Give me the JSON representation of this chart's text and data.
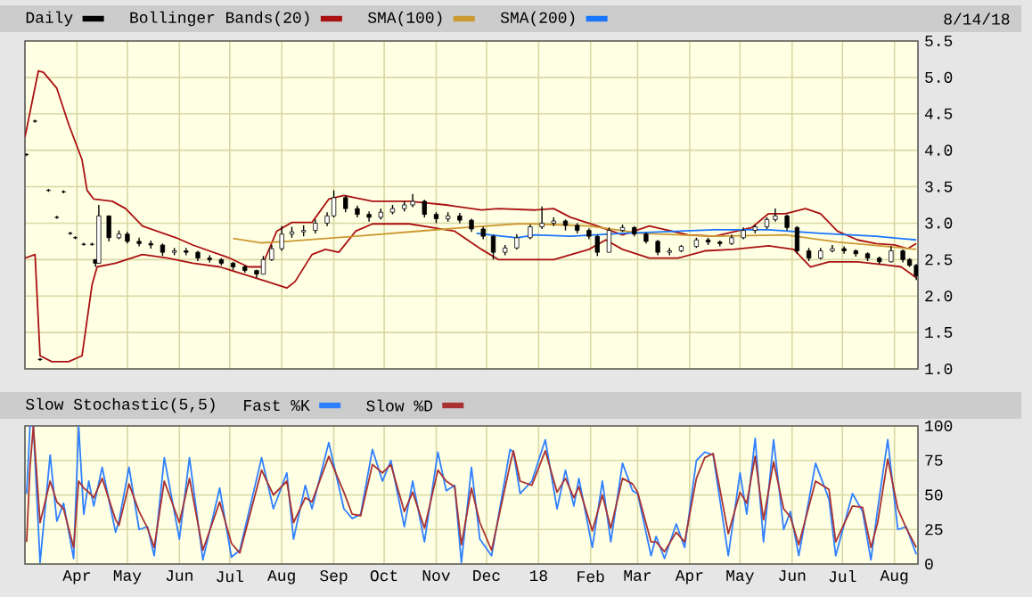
{
  "chart_data": [
    {
      "type": "candlestick",
      "legend": "top",
      "grid": true,
      "tick_labels": "y",
      "annotations": [
        "8/14/18"
      ],
      "xlim": [
        "2017-03-01",
        "2018-08-15"
      ],
      "ylim": [
        1.0,
        5.5
      ],
      "xticks": [
        {
          "value": "2017-04-01",
          "label": null
        },
        {
          "value": "2017-05-01",
          "label": null
        },
        {
          "value": "2017-06-01",
          "label": null
        },
        {
          "value": "2017-07-01",
          "label": null
        },
        {
          "value": "2017-08-01",
          "label": null
        },
        {
          "value": "2017-09-01",
          "label": null
        },
        {
          "value": "2017-10-01",
          "label": null
        },
        {
          "value": "2017-11-01",
          "label": null
        },
        {
          "value": "2017-12-01",
          "label": null
        },
        {
          "value": "2018-01-01",
          "label": null
        },
        {
          "value": "2018-02-01",
          "label": null
        },
        {
          "value": "2018-03-01",
          "label": null
        },
        {
          "value": "2018-04-01",
          "label": null
        },
        {
          "value": "2018-05-01",
          "label": null
        },
        {
          "value": "2018-06-01",
          "label": null
        },
        {
          "value": "2018-07-01",
          "label": null
        },
        {
          "value": "2018-08-01",
          "label": null
        }
      ],
      "yticks": [
        {
          "value": 1.0,
          "label": "1.0"
        },
        1.5,
        {
          "value": 2.0,
          "label": "2.0"
        },
        2.5,
        {
          "value": 3.0,
          "label": "3.0"
        },
        3.5,
        {
          "value": 4.0,
          "label": "4.0"
        },
        4.5,
        {
          "value": 5.0,
          "label": "5.0"
        },
        5.5
      ],
      "series": [
        {
          "type": "candlestick",
          "name": "Daily",
          "color": "#000000",
          "x": [
            "2017-03-02",
            "2017-03-07",
            "2017-03-10",
            "2017-03-15",
            "2017-03-20",
            "2017-03-24",
            "2017-03-28",
            "2017-03-31",
            "2017-04-05",
            "2017-04-10",
            "2017-04-12",
            "2017-04-14",
            "2017-04-20",
            "2017-04-26",
            "2017-05-01",
            "2017-05-08",
            "2017-05-15",
            "2017-05-22",
            "2017-05-29",
            "2017-06-05",
            "2017-06-12",
            "2017-06-19",
            "2017-06-26",
            "2017-07-03",
            "2017-07-10",
            "2017-07-17",
            "2017-07-21",
            "2017-07-26",
            "2017-08-01",
            "2017-08-07",
            "2017-08-14",
            "2017-08-21",
            "2017-08-28",
            "2017-09-01",
            "2017-09-08",
            "2017-09-15",
            "2017-09-22",
            "2017-09-29",
            "2017-10-06",
            "2017-10-13",
            "2017-10-18",
            "2017-10-25",
            "2017-11-01",
            "2017-11-08",
            "2017-11-15",
            "2017-11-22",
            "2017-11-29",
            "2017-12-05",
            "2017-12-12",
            "2017-12-19",
            "2017-12-27",
            "2018-01-03",
            "2018-01-10",
            "2018-01-17",
            "2018-01-24",
            "2018-01-31",
            "2018-02-05",
            "2018-02-12",
            "2018-02-20",
            "2018-02-27",
            "2018-03-06",
            "2018-03-13",
            "2018-03-20",
            "2018-03-27",
            "2018-04-05",
            "2018-04-12",
            "2018-04-19",
            "2018-04-26",
            "2018-05-03",
            "2018-05-10",
            "2018-05-17",
            "2018-05-22",
            "2018-05-29",
            "2018-06-04",
            "2018-06-11",
            "2018-06-18",
            "2018-06-25",
            "2018-07-02",
            "2018-07-09",
            "2018-07-16",
            "2018-07-23",
            "2018-07-30",
            "2018-08-06",
            "2018-08-10",
            "2018-08-14"
          ],
          "ohlc": [
            [
              3.94,
              3.96,
              3.92,
              3.94
            ],
            [
              4.4,
              4.42,
              4.38,
              4.4
            ],
            [
              1.13,
              1.15,
              1.11,
              1.13
            ],
            [
              3.45,
              3.47,
              3.43,
              3.45
            ],
            [
              3.08,
              3.1,
              3.06,
              3.08
            ],
            [
              3.43,
              3.45,
              3.41,
              3.43
            ],
            [
              2.86,
              2.88,
              2.84,
              2.86
            ],
            [
              2.8,
              2.82,
              2.78,
              2.8
            ],
            [
              2.71,
              2.73,
              2.69,
              2.71
            ],
            [
              2.71,
              2.73,
              2.69,
              2.71
            ],
            [
              2.5,
              2.5,
              2.4,
              2.45
            ],
            [
              2.45,
              3.25,
              2.45,
              3.1
            ],
            [
              3.1,
              3.1,
              2.75,
              2.8
            ],
            [
              2.8,
              2.9,
              2.78,
              2.85
            ],
            [
              2.85,
              2.88,
              2.72,
              2.75
            ],
            [
              2.75,
              2.8,
              2.68,
              2.72
            ],
            [
              2.72,
              2.76,
              2.65,
              2.7
            ],
            [
              2.7,
              2.72,
              2.55,
              2.6
            ],
            [
              2.6,
              2.66,
              2.56,
              2.62
            ],
            [
              2.62,
              2.66,
              2.56,
              2.6
            ],
            [
              2.6,
              2.62,
              2.48,
              2.52
            ],
            [
              2.52,
              2.56,
              2.46,
              2.5
            ],
            [
              2.5,
              2.52,
              2.42,
              2.45
            ],
            [
              2.45,
              2.47,
              2.36,
              2.4
            ],
            [
              2.4,
              2.42,
              2.32,
              2.35
            ],
            [
              2.35,
              2.36,
              2.25,
              2.3
            ],
            [
              2.3,
              2.55,
              2.3,
              2.5
            ],
            [
              2.5,
              2.7,
              2.48,
              2.65
            ],
            [
              2.65,
              2.96,
              2.62,
              2.85
            ],
            [
              2.85,
              2.95,
              2.8,
              2.88
            ],
            [
              2.88,
              2.97,
              2.82,
              2.9
            ],
            [
              2.9,
              3.05,
              2.86,
              3.0
            ],
            [
              3.0,
              3.15,
              2.96,
              3.1
            ],
            [
              3.1,
              3.45,
              3.08,
              3.35
            ],
            [
              3.35,
              3.38,
              3.15,
              3.2
            ],
            [
              3.2,
              3.24,
              3.08,
              3.12
            ],
            [
              3.12,
              3.16,
              3.02,
              3.08
            ],
            [
              3.08,
              3.2,
              3.05,
              3.15
            ],
            [
              3.15,
              3.25,
              3.12,
              3.2
            ],
            [
              3.2,
              3.3,
              3.16,
              3.25
            ],
            [
              3.25,
              3.4,
              3.22,
              3.3
            ],
            [
              3.3,
              3.32,
              3.08,
              3.12
            ],
            [
              3.12,
              3.15,
              3.0,
              3.06
            ],
            [
              3.06,
              3.15,
              3.02,
              3.1
            ],
            [
              3.1,
              3.14,
              3.0,
              3.04
            ],
            [
              3.04,
              3.06,
              2.88,
              2.92
            ],
            [
              2.92,
              2.95,
              2.78,
              2.82
            ],
            [
              2.82,
              2.84,
              2.5,
              2.6
            ],
            [
              2.6,
              2.7,
              2.56,
              2.66
            ],
            [
              2.66,
              2.85,
              2.64,
              2.8
            ],
            [
              2.8,
              2.98,
              2.78,
              2.95
            ],
            [
              2.95,
              3.23,
              2.92,
              3.0
            ],
            [
              3.0,
              3.08,
              2.96,
              3.03
            ],
            [
              3.03,
              3.05,
              2.9,
              2.97
            ],
            [
              2.97,
              3.0,
              2.86,
              2.9
            ],
            [
              2.9,
              2.93,
              2.78,
              2.82
            ],
            [
              2.82,
              2.84,
              2.55,
              2.6
            ],
            [
              2.6,
              2.94,
              2.6,
              2.9
            ],
            [
              2.9,
              2.98,
              2.88,
              2.94
            ],
            [
              2.94,
              2.96,
              2.82,
              2.85
            ],
            [
              2.85,
              2.87,
              2.72,
              2.75
            ],
            [
              2.75,
              2.77,
              2.56,
              2.6
            ],
            [
              2.6,
              2.66,
              2.56,
              2.62
            ],
            [
              2.62,
              2.7,
              2.6,
              2.68
            ],
            [
              2.68,
              2.8,
              2.66,
              2.77
            ],
            [
              2.77,
              2.8,
              2.7,
              2.74
            ],
            [
              2.74,
              2.76,
              2.68,
              2.72
            ],
            [
              2.72,
              2.84,
              2.7,
              2.8
            ],
            [
              2.8,
              2.94,
              2.78,
              2.9
            ],
            [
              2.9,
              2.98,
              2.86,
              2.95
            ],
            [
              2.95,
              3.08,
              2.92,
              3.05
            ],
            [
              3.05,
              3.2,
              3.02,
              3.1
            ],
            [
              3.1,
              3.12,
              2.9,
              2.94
            ],
            [
              2.94,
              2.96,
              2.58,
              2.62
            ],
            [
              2.62,
              2.66,
              2.48,
              2.52
            ],
            [
              2.52,
              2.66,
              2.5,
              2.62
            ],
            [
              2.62,
              2.7,
              2.6,
              2.65
            ],
            [
              2.65,
              2.68,
              2.58,
              2.62
            ],
            [
              2.62,
              2.64,
              2.54,
              2.58
            ],
            [
              2.58,
              2.6,
              2.48,
              2.52
            ],
            [
              2.52,
              2.54,
              2.44,
              2.47
            ],
            [
              2.47,
              2.68,
              2.46,
              2.62
            ],
            [
              2.62,
              2.64,
              2.46,
              2.5
            ],
            [
              2.5,
              2.52,
              2.4,
              2.42
            ],
            [
              2.42,
              2.44,
              2.22,
              2.28
            ]
          ]
        },
        {
          "type": "line",
          "name": "Bollinger Bands(20)",
          "color": "#aa1111",
          "x": [
            "2017-03-01",
            "2017-03-09",
            "2017-03-12",
            "2017-03-20",
            "2017-03-27",
            "2017-04-04",
            "2017-04-07",
            "2017-04-11",
            "2017-04-22",
            "2017-04-30",
            "2017-05-10",
            "2017-05-30",
            "2017-06-09",
            "2017-07-01",
            "2017-07-12",
            "2017-07-20",
            "2017-07-29",
            "2017-08-07",
            "2017-08-19",
            "2017-08-29",
            "2017-09-07",
            "2017-09-24",
            "2017-10-16",
            "2017-11-07",
            "2017-11-28",
            "2017-12-08",
            "2017-12-30",
            "2018-01-10",
            "2018-01-20",
            "2018-02-05",
            "2018-02-20",
            "2018-03-08",
            "2018-03-31",
            "2018-04-16",
            "2018-05-08",
            "2018-05-18",
            "2018-05-28",
            "2018-06-09",
            "2018-06-18",
            "2018-06-28",
            "2018-07-10",
            "2018-07-21",
            "2018-08-01",
            "2018-08-09",
            "2018-08-14"
          ],
          "values": [
            4.18,
            5.09,
            5.07,
            4.85,
            4.36,
            3.87,
            3.45,
            3.33,
            3.3,
            3.2,
            2.96,
            2.8,
            2.7,
            2.52,
            2.4,
            2.4,
            2.89,
            3.01,
            3.01,
            3.33,
            3.38,
            3.3,
            3.3,
            3.25,
            3.18,
            3.2,
            3.18,
            3.2,
            3.08,
            2.96,
            2.84,
            2.96,
            2.84,
            2.82,
            2.94,
            3.13,
            3.13,
            3.2,
            3.13,
            2.89,
            2.77,
            2.72,
            2.7,
            2.65,
            2.72
          ]
        },
        {
          "type": "line",
          "color": "#aa1111",
          "x": [
            "2017-03-01",
            "2017-03-07",
            "2017-03-10",
            "2017-03-17",
            "2017-03-27",
            "2017-04-04",
            "2017-04-10",
            "2017-04-13",
            "2017-04-24",
            "2017-05-10",
            "2017-05-25",
            "2017-06-09",
            "2017-06-25",
            "2017-07-12",
            "2017-07-23",
            "2017-08-04",
            "2017-08-09",
            "2017-08-19",
            "2017-08-27",
            "2017-09-04",
            "2017-09-14",
            "2017-09-24",
            "2017-10-16",
            "2017-11-12",
            "2017-11-28",
            "2017-12-08",
            "2017-12-19",
            "2018-01-10",
            "2018-01-31",
            "2018-02-10",
            "2018-02-20",
            "2018-03-08",
            "2018-03-25",
            "2018-04-10",
            "2018-04-27",
            "2018-05-18",
            "2018-06-02",
            "2018-06-12",
            "2018-06-23",
            "2018-07-10",
            "2018-07-26",
            "2018-08-05",
            "2018-08-14"
          ],
          "values": [
            2.52,
            2.57,
            1.18,
            1.1,
            1.1,
            1.18,
            2.16,
            2.4,
            2.45,
            2.57,
            2.52,
            2.45,
            2.4,
            2.28,
            2.2,
            2.11,
            2.2,
            2.57,
            2.64,
            2.6,
            2.89,
            2.99,
            2.99,
            2.89,
            2.64,
            2.5,
            2.5,
            2.5,
            2.64,
            2.77,
            2.64,
            2.52,
            2.52,
            2.62,
            2.64,
            2.69,
            2.64,
            2.4,
            2.47,
            2.47,
            2.43,
            2.4,
            2.25
          ]
        },
        {
          "type": "line",
          "name": "SMA(100)",
          "color": "#cc9933",
          "x": [
            "2017-07-03",
            "2017-07-20",
            "2017-08-04",
            "2017-09-14",
            "2017-10-16",
            "2017-11-18",
            "2017-12-19",
            "2017-12-30",
            "2018-01-31",
            "2018-03-03",
            "2018-04-16",
            "2018-05-28",
            "2018-06-28",
            "2018-08-01",
            "2018-08-14"
          ],
          "values": [
            2.79,
            2.73,
            2.75,
            2.82,
            2.88,
            2.94,
            2.99,
            2.99,
            2.96,
            2.86,
            2.82,
            2.84,
            2.74,
            2.67,
            2.64
          ]
        },
        {
          "type": "line",
          "name": "SMA(200)",
          "color": "#1a75ff",
          "x": [
            "2017-11-25",
            "2017-12-19",
            "2017-12-30",
            "2018-01-20",
            "2018-02-20",
            "2018-04-16",
            "2018-05-18",
            "2018-06-18",
            "2018-07-21",
            "2018-08-14"
          ],
          "values": [
            2.86,
            2.8,
            2.84,
            2.82,
            2.86,
            2.91,
            2.91,
            2.86,
            2.82,
            2.77
          ]
        }
      ]
    },
    {
      "type": "line",
      "title": "Slow Stochastic(5,5)",
      "legend": "top",
      "grid": true,
      "xlim": [
        "2017-03-01",
        "2018-08-15"
      ],
      "ylim": [
        0,
        100
      ],
      "xticks": [
        {
          "value": "2017-04-01",
          "label": "Apr"
        },
        {
          "value": "2017-05-01",
          "label": "May"
        },
        {
          "value": "2017-06-01",
          "label": "Jun"
        },
        {
          "value": "2017-07-01",
          "label": "Jul"
        },
        {
          "value": "2017-08-01",
          "label": "Aug"
        },
        {
          "value": "2017-09-01",
          "label": "Sep"
        },
        {
          "value": "2017-10-01",
          "label": "Oct"
        },
        {
          "value": "2017-11-01",
          "label": "Nov"
        },
        {
          "value": "2017-12-01",
          "label": "Dec"
        },
        {
          "value": "2018-01-01",
          "label": "18"
        },
        {
          "value": "2018-02-01",
          "label": "Feb"
        },
        {
          "value": "2018-03-01",
          "label": "Mar"
        },
        {
          "value": "2018-04-01",
          "label": "Apr"
        },
        {
          "value": "2018-05-01",
          "label": "May"
        },
        {
          "value": "2018-06-01",
          "label": "Jun"
        },
        {
          "value": "2018-07-01",
          "label": "Jul"
        },
        {
          "value": "2018-08-01",
          "label": "Aug"
        }
      ],
      "yticks": [
        0,
        25,
        50,
        75,
        100
      ],
      "x": [
        "2017-03-02",
        "2017-03-04",
        "2017-03-06",
        "2017-03-10",
        "2017-03-16",
        "2017-03-20",
        "2017-03-24",
        "2017-03-30",
        "2017-04-02",
        "2017-04-05",
        "2017-04-08",
        "2017-04-11",
        "2017-04-16",
        "2017-04-24",
        "2017-04-26",
        "2017-05-02",
        "2017-05-08",
        "2017-05-13",
        "2017-05-17",
        "2017-05-23",
        "2017-06-01",
        "2017-06-07",
        "2017-06-15",
        "2017-06-25",
        "2017-07-02",
        "2017-07-07",
        "2017-07-20",
        "2017-07-27",
        "2017-08-04",
        "2017-08-08",
        "2017-08-15",
        "2017-08-19",
        "2017-08-29",
        "2017-09-07",
        "2017-09-12",
        "2017-09-17",
        "2017-09-24",
        "2017-09-30",
        "2017-10-05",
        "2017-10-13",
        "2017-10-18",
        "2017-10-25",
        "2017-11-02",
        "2017-11-07",
        "2017-11-12",
        "2017-11-16",
        "2017-11-22",
        "2017-11-27",
        "2017-12-04",
        "2017-12-15",
        "2017-12-17",
        "2017-12-21",
        "2017-12-28",
        "2018-01-05",
        "2018-01-12",
        "2018-01-17",
        "2018-01-22",
        "2018-01-25",
        "2018-02-02",
        "2018-02-08",
        "2018-02-13",
        "2018-02-20",
        "2018-02-26",
        "2018-03-01",
        "2018-03-09",
        "2018-03-12",
        "2018-03-17",
        "2018-03-24",
        "2018-03-29",
        "2018-04-05",
        "2018-04-10",
        "2018-04-15",
        "2018-04-24",
        "2018-05-01",
        "2018-05-05",
        "2018-05-10",
        "2018-05-15",
        "2018-05-21",
        "2018-05-27",
        "2018-05-31",
        "2018-06-05",
        "2018-06-15",
        "2018-06-23",
        "2018-06-27",
        "2018-07-07",
        "2018-07-13",
        "2018-07-18",
        "2018-07-22",
        "2018-07-28",
        "2018-08-03",
        "2018-08-08",
        "2018-08-14"
      ],
      "series": [
        {
          "name": "Fast %K",
          "color": "#2f80ff",
          "values": [
            51,
            100,
            100,
            1,
            79,
            31,
            44,
            4,
            100,
            36,
            60,
            42,
            70,
            23,
            31,
            70,
            25,
            27,
            6,
            77,
            18,
            77,
            3,
            55,
            5,
            10,
            77,
            40,
            66,
            18,
            57,
            40,
            88,
            40,
            33,
            36,
            83,
            60,
            75,
            27,
            60,
            16,
            81,
            53,
            57,
            1,
            70,
            18,
            6,
            83,
            81,
            51,
            60,
            90,
            40,
            68,
            42,
            62,
            12,
            60,
            16,
            73,
            53,
            51,
            6,
            20,
            4,
            29,
            12,
            75,
            81,
            79,
            6,
            66,
            36,
            91,
            16,
            90,
            25,
            38,
            6,
            73,
            47,
            6,
            51,
            38,
            3,
            40,
            90,
            25,
            27,
            7
          ]
        },
        {
          "name": "Slow %D",
          "color": "#a83232",
          "values": [
            16,
            70,
            100,
            30,
            60,
            45,
            40,
            12,
            60,
            55,
            52,
            48,
            62,
            32,
            28,
            58,
            38,
            26,
            12,
            60,
            30,
            62,
            10,
            45,
            15,
            8,
            68,
            50,
            60,
            30,
            48,
            45,
            78,
            52,
            36,
            35,
            72,
            66,
            72,
            38,
            52,
            26,
            68,
            60,
            56,
            14,
            55,
            30,
            10,
            72,
            82,
            60,
            57,
            82,
            52,
            62,
            48,
            56,
            24,
            50,
            26,
            62,
            58,
            52,
            16,
            16,
            9,
            23,
            16,
            62,
            77,
            80,
            22,
            52,
            44,
            78,
            32,
            74,
            40,
            34,
            14,
            60,
            54,
            16,
            42,
            41,
            12,
            30,
            76,
            40,
            26,
            12
          ]
        }
      ]
    }
  ]
}
